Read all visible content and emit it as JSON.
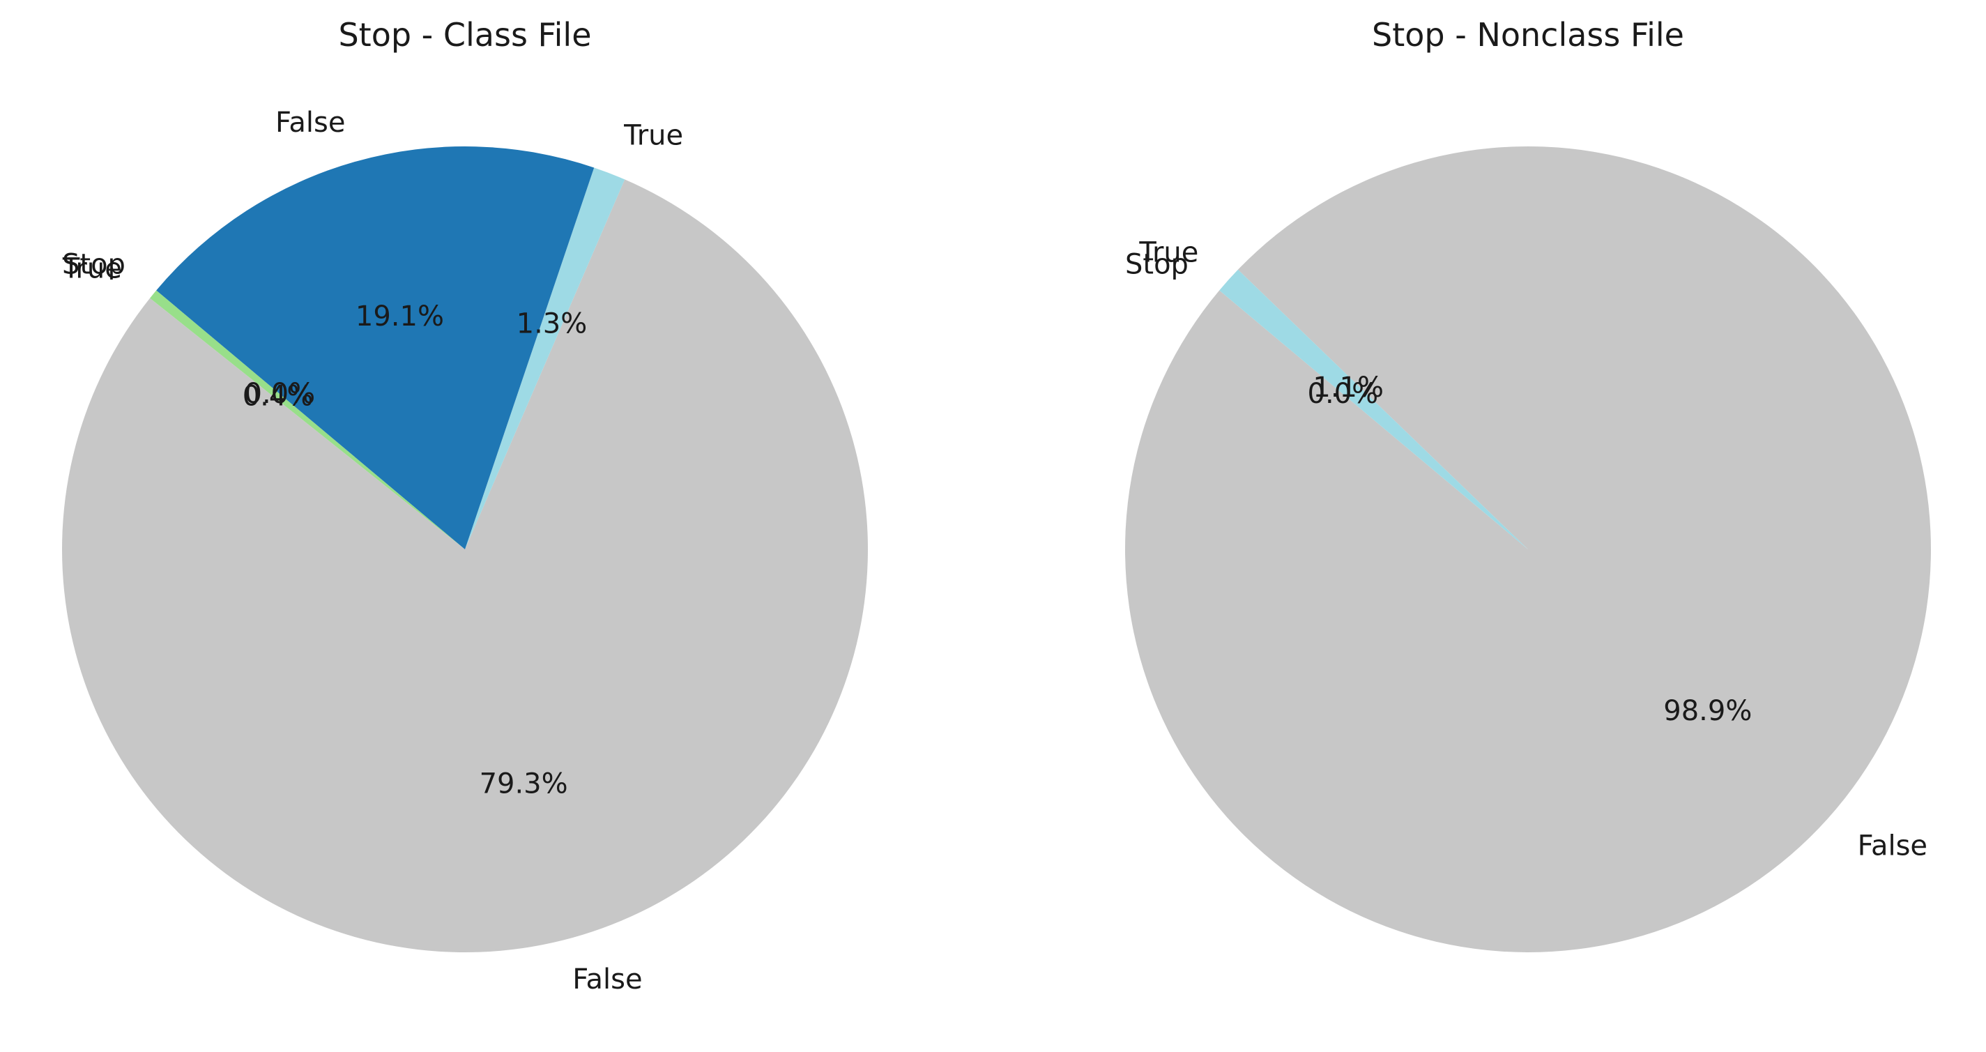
{
  "chart_data": [
    {
      "type": "pie",
      "title": "Stop - Class File",
      "slices": [
        {
          "label": "Stop",
          "percent": 0.0,
          "pct_text": "0.0%",
          "color": "#1f77b4"
        },
        {
          "label": "True",
          "percent": 0.4,
          "pct_text": "0.4%",
          "color": "#98df8a"
        },
        {
          "label": "False",
          "percent": 79.3,
          "pct_text": "79.3%",
          "color": "#c7c7c7"
        },
        {
          "label": "True",
          "percent": 1.3,
          "pct_text": "1.3%",
          "color": "#9edae5"
        },
        {
          "label": "False",
          "percent": 19.1,
          "pct_text": "19.1%",
          "color": "#1f77b4"
        }
      ],
      "start_angle_deg": 140,
      "direction": "counterclockwise"
    },
    {
      "type": "pie",
      "title": "Stop - Nonclass File",
      "slices": [
        {
          "label": "Stop",
          "percent": 0.0,
          "pct_text": "0.0%",
          "color": "#c7c7c7"
        },
        {
          "label": "False",
          "percent": 98.9,
          "pct_text": "98.9%",
          "color": "#c7c7c7"
        },
        {
          "label": "True",
          "percent": 1.1,
          "pct_text": "1.1%",
          "color": "#9edae5"
        }
      ],
      "start_angle_deg": 140,
      "direction": "counterclockwise"
    }
  ]
}
